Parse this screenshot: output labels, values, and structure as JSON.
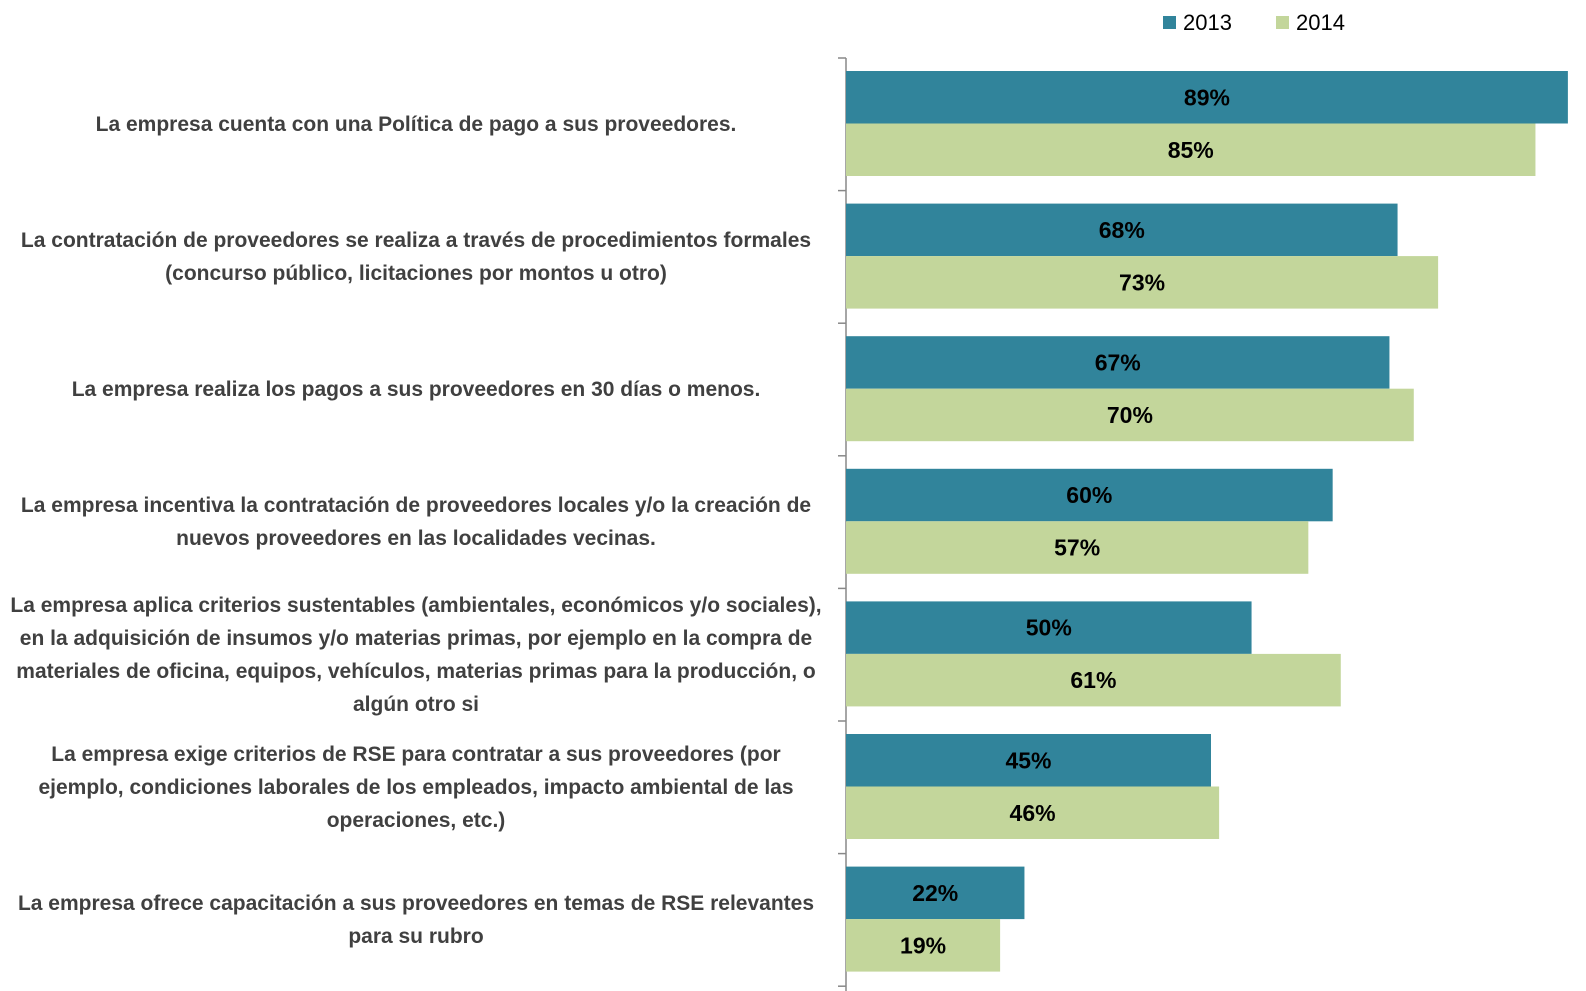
{
  "chart_data": {
    "type": "bar",
    "orientation": "horizontal",
    "categories": [
      "La empresa  cuenta con una Política de pago a sus proveedores.",
      "La contratación de proveedores se realiza a través de procedimientos formales (concurso público, licitaciones por montos u otro)",
      "La empresa realiza los pagos a sus proveedores en 30 días o menos.",
      "La empresa incentiva la contratación de proveedores locales y/o la creación de nuevos proveedores en las localidades vecinas.",
      "La empresa aplica criterios sustentables (ambientales, económicos y/o sociales), en la adquisición de insumos y/o materias primas, por ejemplo en la compra de materiales de oficina, equipos, vehículos, materias primas para la producción, o algún otro si",
      "La empresa exige criterios de RSE para contratar a sus proveedores (por ejemplo, condiciones laborales de los empleados, impacto ambiental de las operaciones, etc.)",
      "La empresa ofrece capacitación a sus proveedores en temas de RSE relevantes para su rubro"
    ],
    "series": [
      {
        "name": "2013",
        "color": "#31849b",
        "values": [
          89,
          68,
          67,
          60,
          50,
          45,
          22
        ],
        "value_labels": [
          "89%",
          "68%",
          "67%",
          "60%",
          "50%",
          "45%",
          "22%"
        ]
      },
      {
        "name": "2014",
        "color": "#c3d69b",
        "values": [
          85,
          73,
          70,
          57,
          61,
          46,
          19
        ],
        "value_labels": [
          "85%",
          "73%",
          "70%",
          "57%",
          "61%",
          "46%",
          "19%"
        ]
      }
    ],
    "xlim": [
      0,
      90
    ],
    "legend": "top-right"
  }
}
